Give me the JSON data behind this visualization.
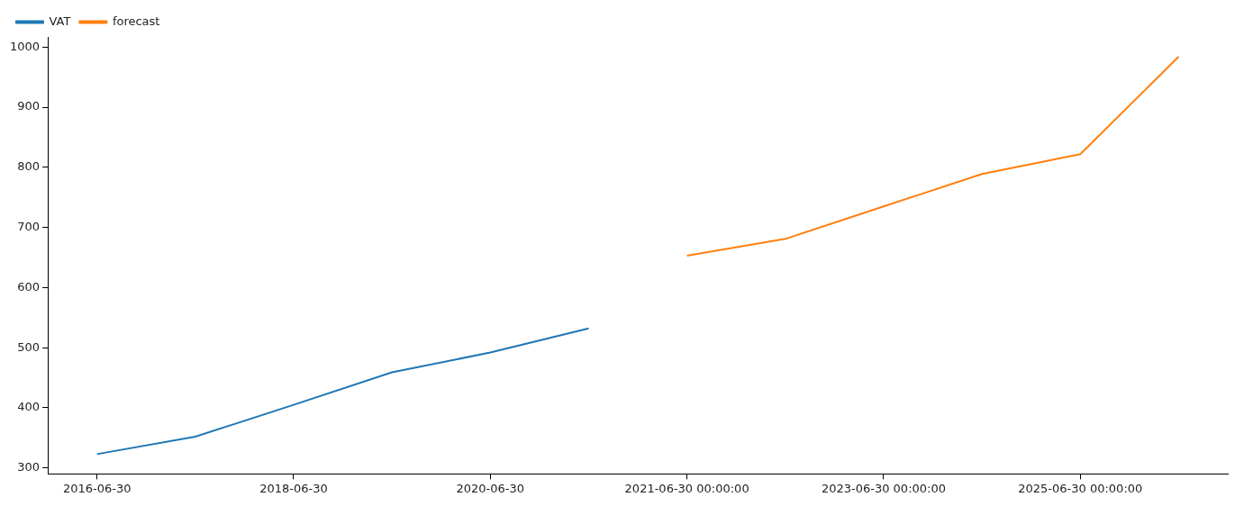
{
  "chart_data": {
    "type": "line",
    "categories": [
      "2016-06-30",
      null,
      "2018-06-30",
      null,
      "2020-06-30",
      null,
      "2021-06-30 00:00:00",
      null,
      "2023-06-30 00:00:00",
      null,
      "2025-06-30 00:00:00",
      null
    ],
    "series": [
      {
        "name": "VAT",
        "color": "#1f77b4",
        "values": [
          323,
          352,
          405,
          459,
          492,
          532,
          null,
          null,
          null,
          null,
          null,
          null
        ]
      },
      {
        "name": "forecast",
        "color": "#ff7f0e",
        "values": [
          null,
          null,
          null,
          null,
          null,
          null,
          653,
          681,
          735,
          789,
          822,
          984
        ]
      }
    ],
    "ylim": [
      290,
      1017
    ],
    "yticks": [
      300,
      400,
      500,
      600,
      700,
      800,
      900,
      1000
    ],
    "grid": false,
    "legend": "top left",
    "marker": "none",
    "line_style": "solid"
  }
}
